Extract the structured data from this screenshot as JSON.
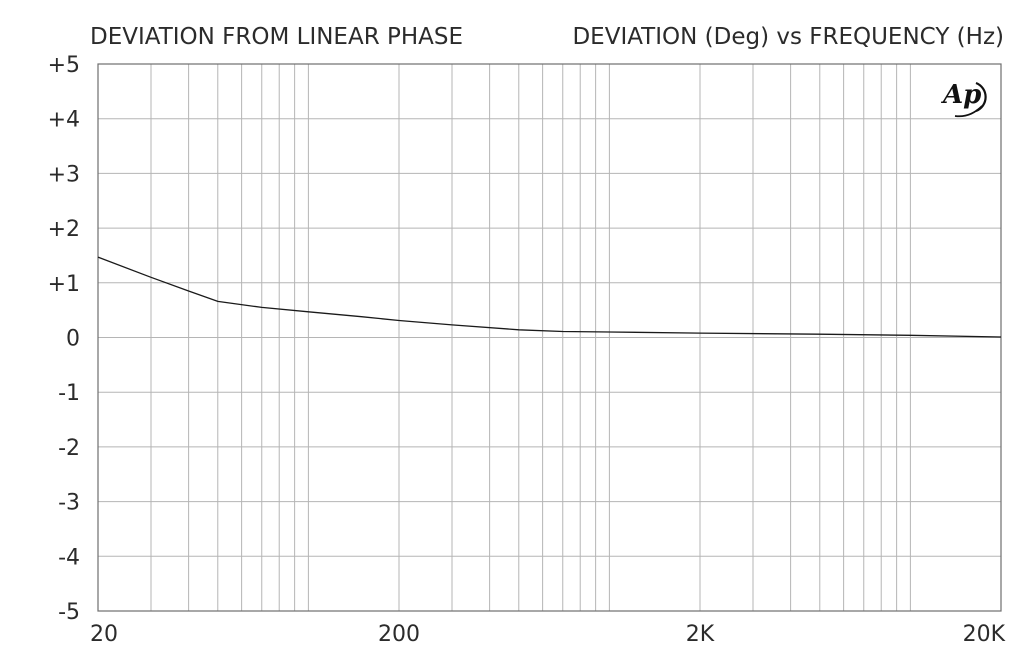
{
  "chart_data": {
    "type": "line",
    "title": "DEVIATION FROM LINEAR PHASE",
    "subtitle": "DEVIATION (Deg) vs FREQUENCY (Hz)",
    "x_scale": "log",
    "xlim": [
      20,
      20000
    ],
    "ylim": [
      -5,
      5
    ],
    "grid": true,
    "x_tick_values": [
      20,
      200,
      2000,
      20000
    ],
    "x_tick_labels": [
      "20",
      "200",
      "2K",
      "20K"
    ],
    "y_tick_values": [
      5,
      4,
      3,
      2,
      1,
      0,
      -1,
      -2,
      -3,
      -4,
      -5
    ],
    "y_tick_labels": [
      "+5",
      "+4",
      "+3",
      "+2",
      "+1",
      "0",
      "-1",
      "-2",
      "-3",
      "-4",
      "-5"
    ],
    "series": [
      {
        "x": [
          20,
          30,
          40,
          50,
          70,
          100,
          150,
          200,
          300,
          500,
          700,
          1000,
          2000,
          5000,
          10000,
          20000
        ],
        "values": [
          1.47,
          1.1,
          0.85,
          0.66,
          0.55,
          0.47,
          0.38,
          0.31,
          0.23,
          0.14,
          0.11,
          0.1,
          0.08,
          0.06,
          0.04,
          0.01
        ],
        "color": "#1a1a1a"
      }
    ]
  },
  "logo": {
    "text": "Ap",
    "icon": "audio-precision-logo"
  }
}
